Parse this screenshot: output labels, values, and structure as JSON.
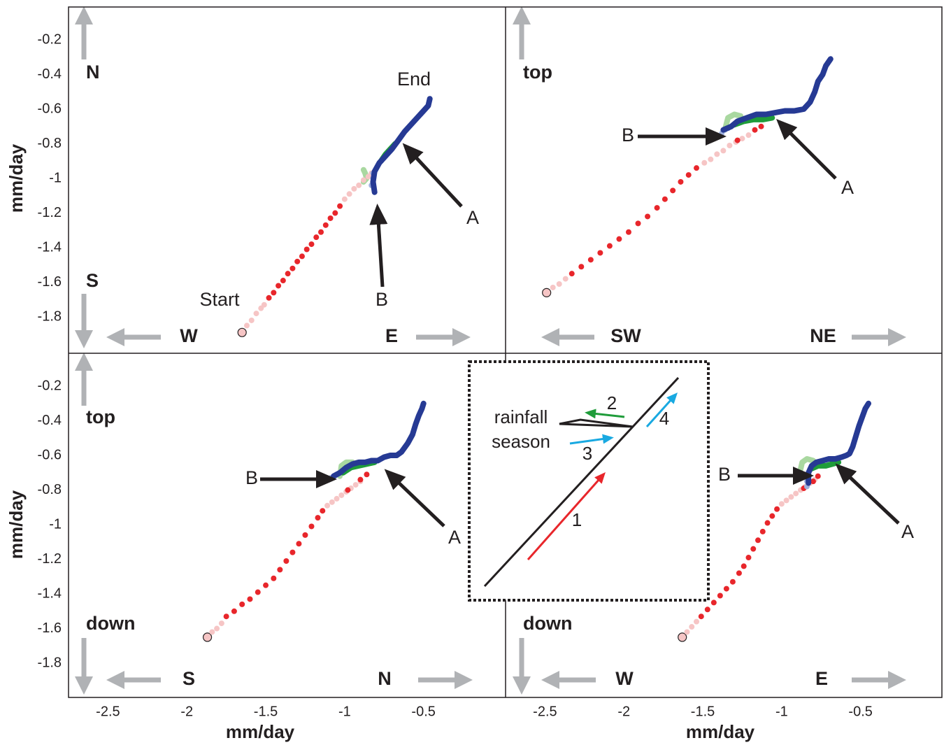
{
  "chart_data": [
    {
      "type": "scatter",
      "xlim": [
        -2.75,
        0.02
      ],
      "ylim": [
        -2.01,
        -0.01
      ],
      "yticks": [
        -0.2,
        -0.4,
        -0.6,
        -0.8,
        -1,
        -1.2,
        -1.4,
        -1.6,
        -1.8
      ],
      "ylabel": "mm/day",
      "directions": {
        "up": "N",
        "down": "S",
        "left": "W",
        "right": "E"
      },
      "annotations": [
        "End",
        "Start",
        "A",
        "B"
      ],
      "series": [
        {
          "color": "#a9d8a0",
          "marker": "line",
          "x": [
            -0.88,
            -0.87,
            -0.86,
            -0.88
          ],
          "values": [
            -0.95,
            -0.97,
            -1.0,
            -1.02
          ]
        },
        {
          "color": "#f6c5c5",
          "marker": "dot",
          "x": [
            -1.65,
            -1.62,
            -1.59,
            -1.56,
            -1.53,
            -1.51
          ],
          "values": [
            -1.89,
            -1.85,
            -1.82,
            -1.78,
            -1.75,
            -1.73
          ]
        },
        {
          "color": "#e8262b",
          "marker": "dot",
          "x": [
            -1.48,
            -1.45,
            -1.42,
            -1.39,
            -1.36,
            -1.33,
            -1.3,
            -1.27,
            -1.24,
            -1.21,
            -1.18,
            -1.15,
            -1.12,
            -1.09,
            -1.06,
            -1.03
          ],
          "values": [
            -1.69,
            -1.66,
            -1.62,
            -1.59,
            -1.55,
            -1.52,
            -1.48,
            -1.45,
            -1.41,
            -1.38,
            -1.34,
            -1.31,
            -1.27,
            -1.23,
            -1.2,
            -1.16
          ]
        },
        {
          "color": "#f6c5c5",
          "marker": "dot",
          "x": [
            -1.0,
            -0.97,
            -0.94,
            -0.91,
            -0.88,
            -0.85,
            -0.83
          ],
          "values": [
            -1.12,
            -1.09,
            -1.06,
            -1.04,
            -1.01,
            -0.99,
            -0.97
          ]
        },
        {
          "color": "#1f9c3a",
          "marker": "line",
          "x": [
            -0.77,
            -0.74,
            -0.71,
            -0.68
          ],
          "values": [
            -0.9,
            -0.86,
            -0.83,
            -0.8
          ]
        },
        {
          "color": "#9fb0dd",
          "marker": "dot",
          "x": [
            -0.83,
            -0.82,
            -0.82
          ],
          "values": [
            -1.04,
            -1.0,
            -0.97
          ]
        },
        {
          "color": "#263a94",
          "marker": "line",
          "x": [
            -0.81,
            -0.82,
            -0.81,
            -0.78,
            -0.74,
            -0.7,
            -0.66,
            -0.62,
            -0.58,
            -0.54,
            -0.5,
            -0.47,
            -0.46
          ],
          "values": [
            -1.08,
            -1.02,
            -0.96,
            -0.91,
            -0.87,
            -0.83,
            -0.78,
            -0.73,
            -0.69,
            -0.65,
            -0.61,
            -0.58,
            -0.54
          ]
        }
      ]
    },
    {
      "type": "scatter",
      "xlim": [
        -2.75,
        0.02
      ],
      "ylim": [
        -2.01,
        -0.01
      ],
      "directions": {
        "up": "top",
        "left": "SW",
        "right": "NE"
      },
      "annotations": [
        "B",
        "A"
      ],
      "series": [
        {
          "color": "#a9d8a0",
          "marker": "line",
          "x": [
            -1.36,
            -1.34,
            -1.3,
            -1.26
          ],
          "values": [
            -0.72,
            -0.65,
            -0.63,
            -0.64
          ]
        },
        {
          "color": "#f6c5c5",
          "marker": "dot",
          "x": [
            -2.49,
            -2.45,
            -2.41,
            -2.37
          ],
          "values": [
            -1.66,
            -1.63,
            -1.61,
            -1.58
          ]
        },
        {
          "color": "#e8262b",
          "marker": "dot",
          "x": [
            -2.33,
            -2.27,
            -2.21,
            -2.15,
            -2.09,
            -2.03,
            -1.97,
            -1.91,
            -1.85,
            -1.79,
            -1.74,
            -1.69,
            -1.64,
            -1.59,
            -1.54
          ],
          "values": [
            -1.55,
            -1.51,
            -1.47,
            -1.43,
            -1.39,
            -1.35,
            -1.31,
            -1.26,
            -1.22,
            -1.17,
            -1.12,
            -1.07,
            -1.02,
            -0.98,
            -0.94
          ]
        },
        {
          "color": "#f6c5c5",
          "marker": "dot",
          "x": [
            -1.49,
            -1.45,
            -1.41,
            -1.37,
            -1.33,
            -1.29,
            -1.25,
            -1.21
          ],
          "values": [
            -0.91,
            -0.89,
            -0.86,
            -0.84,
            -0.81,
            -0.79,
            -0.77,
            -0.75
          ]
        },
        {
          "color": "#e8262b",
          "marker": "dot",
          "x": [
            -1.28,
            -1.17,
            -1.13
          ],
          "values": [
            -0.78,
            -0.72,
            -0.7
          ]
        },
        {
          "color": "#1f9c3a",
          "marker": "line",
          "x": [
            -1.3,
            -1.24,
            -1.18,
            -1.12,
            -1.06
          ],
          "values": [
            -0.69,
            -0.67,
            -0.66,
            -0.66,
            -0.65
          ]
        },
        {
          "color": "#9fb0dd",
          "marker": "dot",
          "x": [
            -1.38,
            -1.36,
            -1.34
          ],
          "values": [
            -0.74,
            -0.72,
            -0.71
          ]
        },
        {
          "color": "#263a94",
          "marker": "line",
          "x": [
            -1.37,
            -1.32,
            -1.28,
            -1.22,
            -1.16,
            -1.1,
            -1.04,
            -0.98,
            -0.92,
            -0.86,
            -0.82,
            -0.79,
            -0.77,
            -0.74,
            -0.72,
            -0.69
          ],
          "values": [
            -0.72,
            -0.7,
            -0.67,
            -0.65,
            -0.63,
            -0.63,
            -0.62,
            -0.61,
            -0.61,
            -0.6,
            -0.56,
            -0.5,
            -0.44,
            -0.4,
            -0.35,
            -0.31
          ]
        }
      ]
    },
    {
      "type": "scatter",
      "xlim": [
        -2.75,
        0.02
      ],
      "ylim": [
        -2.01,
        -0.01
      ],
      "yticks": [
        -0.2,
        -0.4,
        -0.6,
        -0.8,
        -1,
        -1.2,
        -1.4,
        -1.6,
        -1.8
      ],
      "ylabel": "mm/day",
      "xticks": [
        -2.5,
        -2,
        -1.5,
        -1,
        -0.5
      ],
      "xlabel": "mm/day",
      "directions": {
        "up": "top",
        "down": "down",
        "left": "S",
        "right": "N"
      },
      "annotations": [
        "B",
        "A"
      ],
      "series": [
        {
          "color": "#a9d8a0",
          "marker": "line",
          "x": [
            -1.03,
            -1.02,
            -0.99,
            -0.95
          ],
          "values": [
            -0.72,
            -0.66,
            -0.64,
            -0.64
          ]
        },
        {
          "color": "#f6c5c5",
          "marker": "dot",
          "x": [
            -1.87,
            -1.84,
            -1.81,
            -1.78
          ],
          "values": [
            -1.65,
            -1.62,
            -1.6,
            -1.57
          ]
        },
        {
          "color": "#e8262b",
          "marker": "dot",
          "x": [
            -1.75,
            -1.7,
            -1.65,
            -1.6,
            -1.55,
            -1.5,
            -1.45,
            -1.41,
            -1.37,
            -1.33,
            -1.29,
            -1.25,
            -1.21,
            -1.17,
            -1.14
          ],
          "values": [
            -1.53,
            -1.5,
            -1.46,
            -1.43,
            -1.39,
            -1.35,
            -1.31,
            -1.26,
            -1.21,
            -1.16,
            -1.11,
            -1.06,
            -1.01,
            -0.96,
            -0.92
          ]
        },
        {
          "color": "#f6c5c5",
          "marker": "dot",
          "x": [
            -1.11,
            -1.08,
            -1.05,
            -1.02,
            -0.99,
            -0.96,
            -0.93,
            -0.9
          ],
          "values": [
            -0.89,
            -0.87,
            -0.85,
            -0.83,
            -0.81,
            -0.79,
            -0.77,
            -0.75
          ]
        },
        {
          "color": "#e8262b",
          "marker": "dot",
          "x": [
            -0.98,
            -0.9,
            -0.86
          ],
          "values": [
            -0.8,
            -0.74,
            -0.71
          ]
        },
        {
          "color": "#1f9c3a",
          "marker": "line",
          "x": [
            -1.01,
            -0.96,
            -0.91,
            -0.86,
            -0.81
          ],
          "values": [
            -0.7,
            -0.67,
            -0.66,
            -0.65,
            -0.64
          ]
        },
        {
          "color": "#9fb0dd",
          "marker": "dot",
          "x": [
            -1.09,
            -1.07,
            -1.05
          ],
          "values": [
            -0.73,
            -0.72,
            -0.71
          ]
        },
        {
          "color": "#263a94",
          "marker": "line",
          "x": [
            -1.07,
            -1.03,
            -0.99,
            -0.95,
            -0.91,
            -0.87,
            -0.83,
            -0.79,
            -0.75,
            -0.71,
            -0.67,
            -0.64,
            -0.6,
            -0.57,
            -0.55,
            -0.53,
            -0.51,
            -0.5
          ],
          "values": [
            -0.72,
            -0.7,
            -0.67,
            -0.65,
            -0.64,
            -0.64,
            -0.63,
            -0.63,
            -0.61,
            -0.6,
            -0.6,
            -0.58,
            -0.53,
            -0.48,
            -0.42,
            -0.37,
            -0.33,
            -0.3
          ]
        }
      ]
    },
    {
      "type": "scatter",
      "xlim": [
        -2.75,
        0.02
      ],
      "ylim": [
        -2.01,
        -0.01
      ],
      "xticks": [
        -2.5,
        -2,
        -1.5,
        -1,
        -0.5
      ],
      "xlabel": "mm/day",
      "directions": {
        "down": "down",
        "left": "W",
        "right": "E"
      },
      "annotations": [
        "B",
        "A"
      ],
      "series": [
        {
          "color": "#a9d8a0",
          "marker": "line",
          "x": [
            -0.88,
            -0.87,
            -0.84,
            -0.8
          ],
          "values": [
            -0.68,
            -0.64,
            -0.62,
            -0.63
          ]
        },
        {
          "color": "#f6c5c5",
          "marker": "dot",
          "x": [
            -1.63,
            -1.6,
            -1.57,
            -1.54
          ],
          "values": [
            -1.65,
            -1.62,
            -1.59,
            -1.56
          ]
        },
        {
          "color": "#e8262b",
          "marker": "dot",
          "x": [
            -1.51,
            -1.47,
            -1.43,
            -1.39,
            -1.35,
            -1.31,
            -1.27,
            -1.24,
            -1.21,
            -1.18,
            -1.15,
            -1.12,
            -1.09,
            -1.06,
            -1.03
          ],
          "values": [
            -1.53,
            -1.49,
            -1.45,
            -1.41,
            -1.37,
            -1.33,
            -1.28,
            -1.24,
            -1.19,
            -1.14,
            -1.09,
            -1.04,
            -0.99,
            -0.95,
            -0.91
          ]
        },
        {
          "color": "#f6c5c5",
          "marker": "dot",
          "x": [
            -1.0,
            -0.97,
            -0.94,
            -0.91,
            -0.88,
            -0.85,
            -0.82,
            -0.79
          ],
          "values": [
            -0.88,
            -0.86,
            -0.84,
            -0.82,
            -0.8,
            -0.78,
            -0.76,
            -0.74
          ]
        },
        {
          "color": "#e8262b",
          "marker": "dot",
          "x": [
            -0.86,
            -0.8,
            -0.77
          ],
          "values": [
            -0.79,
            -0.75,
            -0.72
          ]
        },
        {
          "color": "#1f9c3a",
          "marker": "line",
          "x": [
            -0.82,
            -0.77,
            -0.72,
            -0.68,
            -0.64
          ],
          "values": [
            -0.68,
            -0.66,
            -0.66,
            -0.65,
            -0.64
          ]
        },
        {
          "color": "#9fb0dd",
          "marker": "dot",
          "x": [
            -0.84,
            -0.84,
            -0.83
          ],
          "values": [
            -0.78,
            -0.75,
            -0.72
          ]
        },
        {
          "color": "#263a94",
          "marker": "line",
          "x": [
            -0.83,
            -0.83,
            -0.81,
            -0.78,
            -0.74,
            -0.7,
            -0.66,
            -0.62,
            -0.59,
            -0.57,
            -0.55,
            -0.53,
            -0.51,
            -0.49,
            -0.47,
            -0.45
          ],
          "values": [
            -0.76,
            -0.7,
            -0.66,
            -0.64,
            -0.63,
            -0.62,
            -0.62,
            -0.61,
            -0.6,
            -0.59,
            -0.55,
            -0.49,
            -0.43,
            -0.38,
            -0.33,
            -0.3
          ]
        }
      ]
    }
  ],
  "inset": {
    "caption_lines": [
      "rainfall",
      "season"
    ],
    "steps": [
      "1",
      "2",
      "3",
      "4"
    ]
  }
}
